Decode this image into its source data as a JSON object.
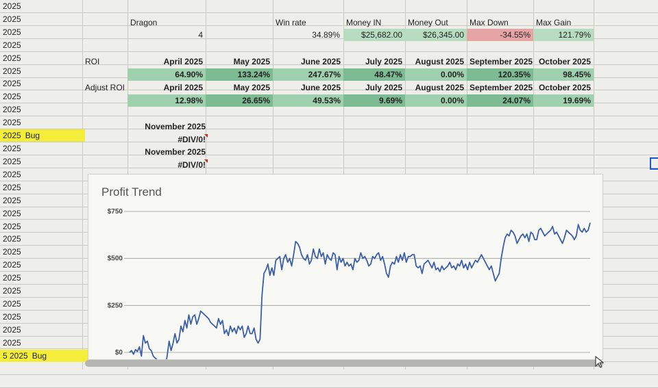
{
  "left_col": [
    {
      "text": "2025"
    },
    {
      "text": "2025"
    },
    {
      "text": "2025"
    },
    {
      "text": "2025"
    },
    {
      "text": "2025"
    },
    {
      "text": "2025"
    },
    {
      "text": "2025"
    },
    {
      "text": "2025"
    },
    {
      "text": "2025"
    },
    {
      "text": "2025"
    },
    {
      "text": "2025",
      "bug": "Bug"
    },
    {
      "text": "2025"
    },
    {
      "text": "2025"
    },
    {
      "text": "2025"
    },
    {
      "text": "2025"
    },
    {
      "text": "2025"
    },
    {
      "text": "2025"
    },
    {
      "text": "2025"
    },
    {
      "text": "2025"
    },
    {
      "text": "2025"
    },
    {
      "text": "2025"
    },
    {
      "text": "2025"
    },
    {
      "text": "2025"
    },
    {
      "text": "2025"
    },
    {
      "text": "2025"
    },
    {
      "text": "2025"
    },
    {
      "text": "2025"
    },
    {
      "text": "5  2025",
      "bug": "Bug"
    }
  ],
  "summary": {
    "name_label": "Dragon",
    "name_value": "4",
    "win_rate_label": "Win rate",
    "win_rate_value": "34.89%",
    "money_in_label": "Money IN",
    "money_in_value": "$25,682.00",
    "money_out_label": "Money Out",
    "money_out_value": "$26,345.00",
    "max_down_label": "Max Down",
    "max_down_value": "-34.55%",
    "max_gain_label": "Max Gain",
    "max_gain_value": "121.79%"
  },
  "roi": {
    "label": "ROI",
    "months": [
      "April 2025",
      "May 2025",
      "June 2025",
      "July 2025",
      "August 2025",
      "September 2025",
      "October 2025"
    ],
    "values": [
      "64.90%",
      "133.24%",
      "247.67%",
      "48.47%",
      "0.00%",
      "120.35%",
      "98.45%"
    ]
  },
  "adjust_roi": {
    "label": "Adjust ROI",
    "months": [
      "April 2025",
      "May 2025",
      "June 2025",
      "July 2025",
      "August 2025",
      "September 2025",
      "October 2025"
    ],
    "values": [
      "12.98%",
      "26.65%",
      "49.53%",
      "9.69%",
      "0.00%",
      "24.07%",
      "19.69%"
    ]
  },
  "extra": {
    "month1": "November 2025",
    "val1": "#DIV/0!",
    "month2": "November 2025",
    "val2": "#DIV/0!"
  },
  "chart_data": {
    "type": "line",
    "title": "Profit Trend",
    "ytick_labels": [
      "$750",
      "$500",
      "$250",
      "$0"
    ],
    "y_ticks": [
      750,
      500,
      250,
      0
    ],
    "ylim": [
      0,
      750
    ],
    "line_color": "#3a5ea8",
    "grid": true,
    "series": [
      {
        "values": [
          0,
          10,
          -10,
          15,
          5,
          30,
          -20,
          90,
          50,
          60,
          20,
          10,
          -20,
          -30,
          -40,
          -60,
          -70,
          -65,
          -80,
          -20,
          60,
          10,
          50,
          100,
          50,
          70,
          140,
          110,
          170,
          130,
          200,
          150,
          190,
          200,
          150,
          180,
          220,
          210,
          200,
          190,
          180,
          160,
          150,
          140,
          130,
          180,
          150,
          170,
          100,
          120,
          90,
          140,
          110,
          130,
          100,
          140,
          120,
          140,
          80,
          100,
          140,
          100,
          100,
          130,
          70,
          50,
          70,
          300,
          420,
          440,
          470,
          410,
          450,
          410,
          490,
          500,
          510,
          440,
          500,
          520,
          480,
          500,
          460,
          520,
          590,
          580,
          560,
          520,
          500,
          490,
          520,
          470,
          490,
          550,
          510,
          500,
          550,
          510,
          530,
          470,
          520,
          500,
          490,
          530,
          520,
          440,
          510,
          480,
          500,
          460,
          480,
          460,
          470,
          440,
          500,
          480,
          490,
          530,
          500,
          510,
          490,
          460,
          470,
          510,
          500,
          520,
          530,
          490,
          510,
          470,
          420,
          400,
          460,
          480,
          470,
          510,
          480,
          520,
          490,
          530,
          480,
          510,
          510,
          520,
          520,
          460,
          450,
          460,
          420,
          470,
          480,
          490,
          470,
          450,
          480,
          440,
          450,
          430,
          460,
          440,
          450,
          460,
          480,
          450,
          460,
          440,
          470,
          460,
          490,
          450,
          470,
          440,
          480,
          450,
          470,
          490,
          480,
          500,
          520,
          500,
          480,
          460,
          440,
          460,
          420,
          380,
          400,
          420,
          500,
          560,
          610,
          630,
          620,
          650,
          640,
          620,
          580,
          600,
          620,
          630,
          610,
          630,
          590,
          640,
          630,
          600,
          600,
          650,
          660,
          640,
          620,
          630,
          640,
          650,
          670,
          630,
          640,
          620,
          600,
          580,
          610,
          650,
          640,
          630,
          620,
          600,
          620,
          680,
          650,
          640,
          660,
          640,
          650,
          690
        ]
      }
    ]
  }
}
